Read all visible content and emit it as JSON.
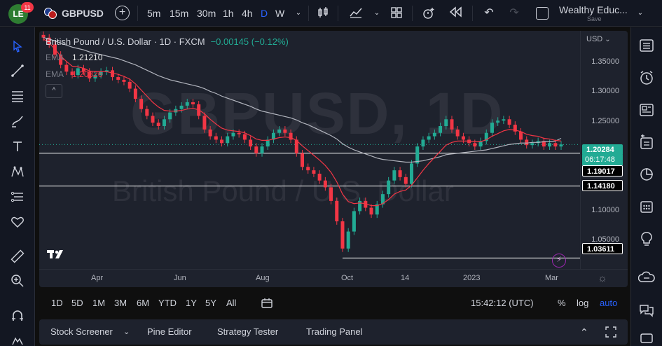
{
  "header": {
    "badge_count": "11",
    "logo_text": "LE",
    "symbol": "GBPUSD",
    "timeframes": [
      {
        "label": "5m",
        "active": false
      },
      {
        "label": "15m",
        "active": false
      },
      {
        "label": "30m",
        "active": false
      },
      {
        "label": "1h",
        "active": false
      },
      {
        "label": "4h",
        "active": false
      },
      {
        "label": "D",
        "active": true
      },
      {
        "label": "W",
        "active": false
      }
    ],
    "layout_name": "Wealthy Educ...",
    "layout_save": "Save",
    "accent_color": "#2962ff"
  },
  "legend": {
    "title": "British Pound / U.S. Dollar · 1D · FXCM",
    "change": "−0.00145 (−0.12%)",
    "ema1_label": "EMA",
    "ema1_value": "1.21210",
    "ema2_label": "EMA",
    "ema2_value": "1.20826",
    "collapse_symbol": "^"
  },
  "watermark": {
    "main": "GBPUSD, 1D",
    "sub": "British Pound / U.S. Dollar"
  },
  "price_axis": {
    "currency": "USD",
    "ticks": [
      "1.35000",
      "1.30000",
      "1.25000",
      "1.10000",
      "1.05000"
    ],
    "current_price": "1.20284",
    "countdown": "06:17:48",
    "levels": [
      "1.19017",
      "1.14180",
      "1.03611"
    ],
    "colors": {
      "up": "#22ab94",
      "down": "#f23645",
      "ema_fast": "#f23645",
      "ema_slow": "#b2b5be"
    }
  },
  "time_axis": {
    "ticks": [
      "Apr",
      "Jun",
      "Aug",
      "Oct",
      "14",
      "2023",
      "Mar"
    ]
  },
  "range_bar": {
    "ranges": [
      "1D",
      "5D",
      "1M",
      "3M",
      "6M",
      "YTD",
      "1Y",
      "5Y",
      "All"
    ],
    "clock": "15:42:12 (UTC)",
    "percent": "%",
    "log": "log",
    "auto": "auto"
  },
  "bottom_panel": {
    "tabs": [
      "Stock Screener",
      "Pine Editor",
      "Strategy Tester",
      "Trading Panel"
    ]
  },
  "chart_data": {
    "type": "candlestick",
    "symbol": "GBPUSD",
    "interval": "1D",
    "ylim": [
      1.02,
      1.37
    ],
    "horizontal_levels": [
      1.19017,
      1.1418,
      1.03611
    ],
    "current_price": 1.20284,
    "ema_values_last": [
      1.2121,
      1.20826
    ],
    "x_ticks": [
      "Apr",
      "Jun",
      "Aug",
      "Oct",
      "14",
      "2023",
      "Mar"
    ],
    "closes": [
      1.36,
      1.35,
      1.335,
      1.32,
      1.31,
      1.305,
      1.315,
      1.31,
      1.3,
      1.305,
      1.31,
      1.312,
      1.302,
      1.298,
      1.295,
      1.285,
      1.27,
      1.255,
      1.245,
      1.235,
      1.23,
      1.24,
      1.25,
      1.255,
      1.26,
      1.265,
      1.262,
      1.245,
      1.225,
      1.215,
      1.21,
      1.205,
      1.215,
      1.22,
      1.218,
      1.21,
      1.2,
      1.19,
      1.2,
      1.21,
      1.22,
      1.225,
      1.22,
      1.21,
      1.19,
      1.17,
      1.165,
      1.16,
      1.15,
      1.14,
      1.12,
      1.09,
      1.05,
      1.075,
      1.105,
      1.12,
      1.11,
      1.1,
      1.115,
      1.13,
      1.15,
      1.165,
      1.155,
      1.145,
      1.175,
      1.2,
      1.21,
      1.215,
      1.22,
      1.23,
      1.24,
      1.225,
      1.215,
      1.21,
      1.205,
      1.2,
      1.208,
      1.22,
      1.235,
      1.238,
      1.24,
      1.232,
      1.222,
      1.21,
      1.202,
      1.205,
      1.208,
      1.2,
      1.205,
      1.2,
      1.203
    ],
    "ema_fast": [
      1.358,
      1.352,
      1.343,
      1.333,
      1.325,
      1.318,
      1.317,
      1.315,
      1.311,
      1.31,
      1.31,
      1.31,
      1.308,
      1.306,
      1.303,
      1.299,
      1.292,
      1.283,
      1.274,
      1.265,
      1.258,
      1.253,
      1.252,
      1.252,
      1.253,
      1.255,
      1.256,
      1.254,
      1.248,
      1.24,
      1.233,
      1.227,
      1.224,
      1.223,
      1.222,
      1.22,
      1.216,
      1.211,
      1.209,
      1.209,
      1.211,
      1.213,
      1.214,
      1.213,
      1.209,
      1.201,
      1.194,
      1.187,
      1.18,
      1.172,
      1.162,
      1.148,
      1.13,
      1.119,
      1.116,
      1.117,
      1.116,
      1.113,
      1.113,
      1.116,
      1.122,
      1.13,
      1.134,
      1.136,
      1.143,
      1.154,
      1.165,
      1.175,
      1.184,
      1.193,
      1.202,
      1.206,
      1.208,
      1.208,
      1.208,
      1.207,
      1.207,
      1.21,
      1.215,
      1.219,
      1.223,
      1.225,
      1.224,
      1.222,
      1.218,
      1.216,
      1.215,
      1.212,
      1.211,
      1.209,
      1.208
    ],
    "ema_slow": [
      1.36,
      1.358,
      1.355,
      1.352,
      1.349,
      1.346,
      1.344,
      1.342,
      1.339,
      1.337,
      1.335,
      1.333,
      1.331,
      1.329,
      1.326,
      1.323,
      1.32,
      1.316,
      1.312,
      1.308,
      1.304,
      1.301,
      1.298,
      1.296,
      1.294,
      1.292,
      1.29,
      1.288,
      1.285,
      1.281,
      1.278,
      1.274,
      1.271,
      1.268,
      1.265,
      1.262,
      1.259,
      1.255,
      1.252,
      1.25,
      1.248,
      1.246,
      1.244,
      1.242,
      1.239,
      1.235,
      1.232,
      1.228,
      1.224,
      1.22,
      1.216,
      1.211,
      1.204,
      1.199,
      1.195,
      1.192,
      1.189,
      1.186,
      1.183,
      1.181,
      1.18,
      1.179,
      1.178,
      1.177,
      1.177,
      1.178,
      1.179,
      1.181,
      1.183,
      1.185,
      1.188,
      1.189,
      1.19,
      1.191,
      1.192,
      1.193,
      1.194,
      1.195,
      1.197,
      1.199,
      1.201,
      1.203,
      1.204,
      1.205,
      1.205,
      1.206,
      1.206,
      1.207,
      1.207,
      1.208,
      1.212
    ]
  }
}
